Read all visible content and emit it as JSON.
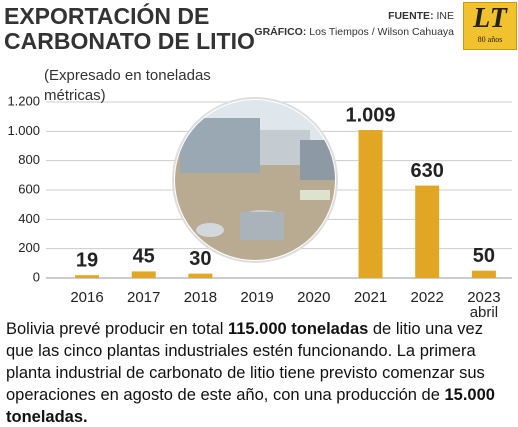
{
  "header": {
    "title_lines": [
      "EXPORTACIÓN DE",
      "CARBONATO DE LITIO"
    ],
    "source_label": "FUENTE:",
    "source": "INE",
    "credit_label": "GRÁFICO:",
    "credit": "Los Tiempos / Wilson Cahuaya",
    "logo": "LT",
    "logo_sub": "80 años"
  },
  "chart_data": {
    "type": "bar",
    "subtitle": "(Expresado en toneladas métricas)",
    "categories": [
      "2016",
      "2017",
      "2018",
      "2019",
      "2020",
      "2021",
      "2022",
      "2023 abril"
    ],
    "values": [
      19,
      45,
      30,
      null,
      null,
      1009,
      630,
      50
    ],
    "value_labels": [
      "19",
      "45",
      "30",
      null,
      null,
      "1.009",
      "630",
      "50"
    ],
    "color": "#e2a625",
    "ylim": [
      0,
      1200
    ],
    "yticks": [
      0,
      200,
      400,
      600,
      800,
      {
        "value": 1000,
        "label": "1.000"
      },
      {
        "value": 1200,
        "label": "1.200"
      }
    ],
    "grid": true
  },
  "footer": {
    "parts": [
      {
        "text": "Bolivia prevé producir en total ",
        "bold": false
      },
      {
        "text": "115.000 toneladas",
        "bold": true
      },
      {
        "text": " de litio una vez que las cinco plantas industriales estén funcionando. La primera planta industrial de carbonato de litio tiene previsto comenzar sus operaciones en agosto de este año, con una producción de ",
        "bold": false
      },
      {
        "text": "15.000 toneladas.",
        "bold": true
      }
    ]
  }
}
